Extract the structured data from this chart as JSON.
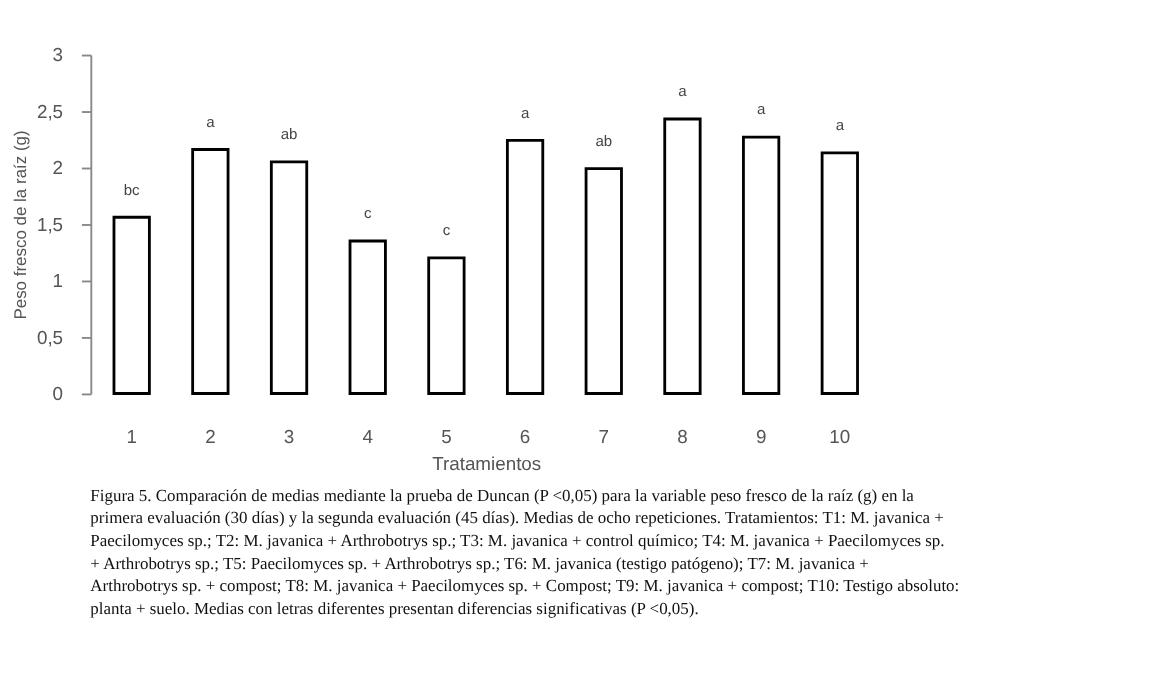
{
  "chart_data": {
    "type": "bar",
    "xlabel": "Tratamientos",
    "ylabel": "Peso fresco de la raíz (g)",
    "categories": [
      "1",
      "2",
      "3",
      "4",
      "5",
      "6",
      "7",
      "8",
      "9",
      "10"
    ],
    "values": [
      1.56,
      2.16,
      2.05,
      1.35,
      1.2,
      2.24,
      1.99,
      2.43,
      2.27,
      2.13
    ],
    "color": "#ffffff",
    "ylim": [
      0,
      3
    ],
    "yticks": [
      0,
      {
        "value": 0.5,
        "label": "0,5"
      },
      1,
      {
        "value": 1.5,
        "label": "1,5"
      },
      2,
      {
        "value": 2.5,
        "label": "2,5"
      },
      3
    ],
    "grid": false,
    "annotations": [
      {
        "text": "bc",
        "x": "1",
        "y": 1.56
      },
      {
        "text": "a",
        "x": "2",
        "y": 2.16
      },
      {
        "text": "ab",
        "x": "3",
        "y": 2.05
      },
      {
        "text": "c",
        "x": "4",
        "y": 1.35
      },
      {
        "text": "c",
        "x": "5",
        "y": 1.2
      },
      {
        "text": "a",
        "x": "6",
        "y": 2.24
      },
      {
        "text": "ab",
        "x": "7",
        "y": 1.99
      },
      {
        "text": "a",
        "x": "8",
        "y": 2.43
      },
      {
        "text": "a",
        "x": "9",
        "y": 2.27
      },
      {
        "text": "a",
        "x": "10",
        "y": 2.13
      },
      "Figura 5. Comparación de medias mediante la prueba de Duncan (P <0,05) para la variable peso fresco de la raíz (g) en la primera evaluación (30 días) y la segunda evaluación (45 días). Medias de ocho repeticiones. Tratamientos: T1: M. javanica + Paecilomyces sp.; T2: M. javanica + Arthrobotrys sp.; T3: M. javanica + control químico; T4: M. javanica + Paecilomyces sp. + Arthrobotrys sp.; T5: Paecilomyces sp. + Arthrobotrys sp.; T6: M. javanica (testigo patógeno); T7: M. javanica + Arthrobotrys sp. + compost; T8: M. javanica + Paecilomyces sp. + Compost; T9: M. javanica + compost; T10: Testigo absoluto: planta + suelo. Medias con letras diferentes presentan diferencias significativas (P <0,05)."
    ]
  }
}
